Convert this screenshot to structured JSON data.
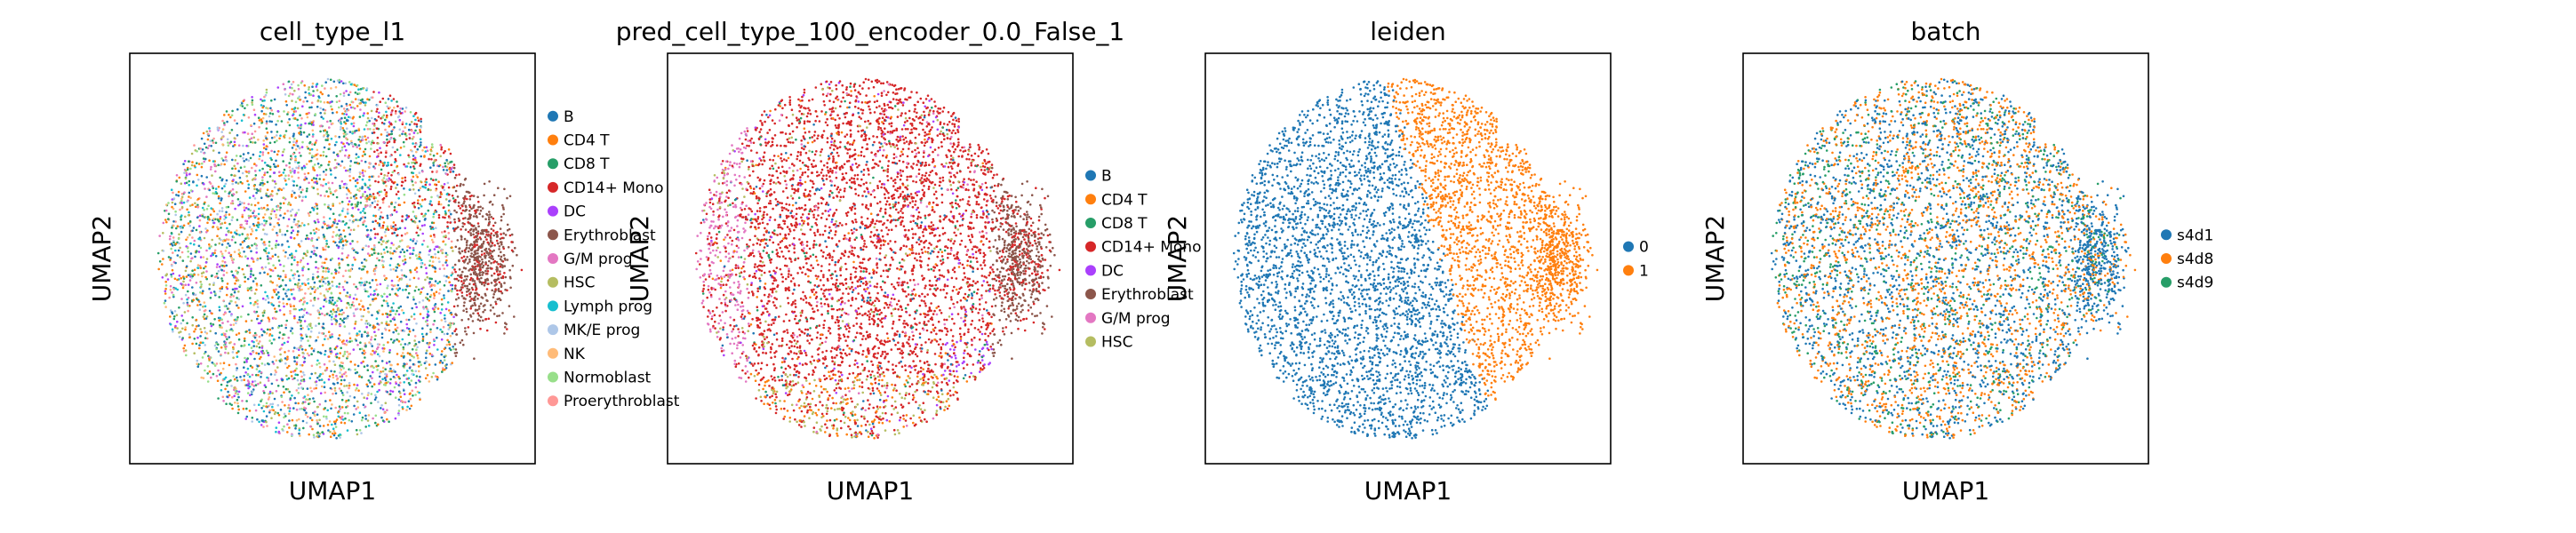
{
  "chart_data": [
    {
      "type": "scatter",
      "title": "cell_type_l1",
      "xlabel": "UMAP1",
      "ylabel": "UMAP2",
      "grid": false,
      "legend_position": "right",
      "series": [
        {
          "name": "B",
          "color": "#1f77b4"
        },
        {
          "name": "CD4 T",
          "color": "#ff7f0e"
        },
        {
          "name": "CD8 T",
          "color": "#279e68"
        },
        {
          "name": "CD14+ Mono",
          "color": "#d62728"
        },
        {
          "name": "DC",
          "color": "#aa40fc"
        },
        {
          "name": "Erythroblast",
          "color": "#8c564b"
        },
        {
          "name": "G/M prog",
          "color": "#e377c2"
        },
        {
          "name": "HSC",
          "color": "#b5bd61"
        },
        {
          "name": "Lymph prog",
          "color": "#17becf"
        },
        {
          "name": "MK/E prog",
          "color": "#aec7e8"
        },
        {
          "name": "NK",
          "color": "#ffbb78"
        },
        {
          "name": "Normoblast",
          "color": "#98df8a"
        },
        {
          "name": "Proerythroblast",
          "color": "#ff9896"
        }
      ]
    },
    {
      "type": "scatter",
      "title": "pred_cell_type_100_encoder_0.0_False_1",
      "xlabel": "UMAP1",
      "ylabel": "UMAP2",
      "grid": false,
      "legend_position": "right",
      "series": [
        {
          "name": "B",
          "color": "#1f77b4"
        },
        {
          "name": "CD4 T",
          "color": "#ff7f0e"
        },
        {
          "name": "CD8 T",
          "color": "#279e68"
        },
        {
          "name": "CD14+ Mono",
          "color": "#d62728"
        },
        {
          "name": "DC",
          "color": "#aa40fc"
        },
        {
          "name": "Erythroblast",
          "color": "#8c564b"
        },
        {
          "name": "G/M prog",
          "color": "#e377c2"
        },
        {
          "name": "HSC",
          "color": "#b5bd61"
        }
      ]
    },
    {
      "type": "scatter",
      "title": "leiden",
      "xlabel": "UMAP1",
      "ylabel": "UMAP2",
      "grid": false,
      "legend_position": "right",
      "series": [
        {
          "name": "0",
          "color": "#1f77b4"
        },
        {
          "name": "1",
          "color": "#ff7f0e"
        }
      ]
    },
    {
      "type": "scatter",
      "title": "batch",
      "xlabel": "UMAP1",
      "ylabel": "UMAP2",
      "grid": false,
      "legend_position": "right",
      "series": [
        {
          "name": "s4d1",
          "color": "#1f77b4"
        },
        {
          "name": "s4d8",
          "color": "#ff7f0e"
        },
        {
          "name": "s4d9",
          "color": "#279e68"
        }
      ]
    }
  ]
}
